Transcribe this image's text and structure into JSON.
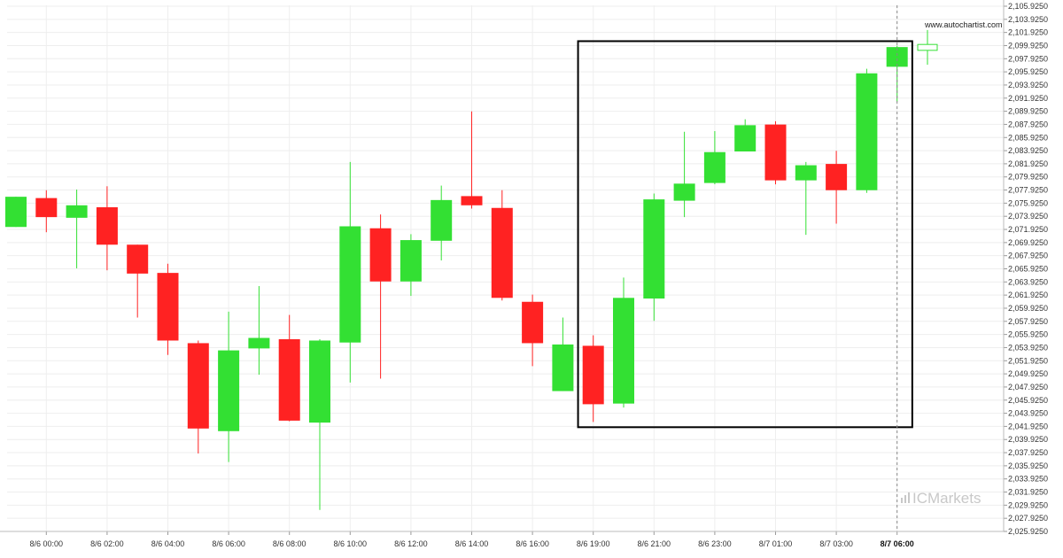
{
  "watermark": "www.autochartist.com",
  "brand": "ICMarkets",
  "colors": {
    "up": "#33e033",
    "down": "#ff2222",
    "grid": "#eeeeee",
    "box": "#000000",
    "cursor": "#888888"
  },
  "chart_data": {
    "type": "candlestick",
    "y_ticks": [
      "2,105.9250",
      "2,103.9250",
      "2,101.9250",
      "2,099.9250",
      "2,097.9250",
      "2,095.9250",
      "2,093.9250",
      "2,091.9250",
      "2,089.9250",
      "2,087.9250",
      "2,085.9250",
      "2,083.9250",
      "2,081.9250",
      "2,079.9250",
      "2,077.9250",
      "2,075.9250",
      "2,073.9250",
      "2,071.9250",
      "2,069.9250",
      "2,067.9250",
      "2,065.9250",
      "2,063.9250",
      "2,061.9250",
      "2,059.9250",
      "2,057.9250",
      "2,055.9250",
      "2,053.9250",
      "2,051.9250",
      "2,049.9250",
      "2,047.9250",
      "2,045.9250",
      "2,043.9250",
      "2,041.9250",
      "2,039.9250",
      "2,037.9250",
      "2,035.9250",
      "2,033.9250",
      "2,031.9250",
      "2,029.9250",
      "2,027.9250",
      "2,025.9250"
    ],
    "ylim": [
      2025.925,
      2105.925
    ],
    "x_ticks": [
      {
        "label": "8/6 00:00",
        "index": 1
      },
      {
        "label": "8/6 02:00",
        "index": 3
      },
      {
        "label": "8/6 04:00",
        "index": 5
      },
      {
        "label": "8/6 06:00",
        "index": 7
      },
      {
        "label": "8/6 08:00",
        "index": 9
      },
      {
        "label": "8/6 10:00",
        "index": 11
      },
      {
        "label": "8/6 12:00",
        "index": 13
      },
      {
        "label": "8/6 14:00",
        "index": 15
      },
      {
        "label": "8/6 16:00",
        "index": 17
      },
      {
        "label": "8/6 19:00",
        "index": 19
      },
      {
        "label": "8/6 21:00",
        "index": 21
      },
      {
        "label": "8/6 23:00",
        "index": 23
      },
      {
        "label": "8/7 01:00",
        "index": 25
      },
      {
        "label": "8/7 03:00",
        "index": 27
      },
      {
        "label": "8/7 06:00",
        "index": 29,
        "bold": true
      }
    ],
    "candles": [
      {
        "o": 2072.3,
        "h": 2076.9,
        "l": 2072.3,
        "c": 2076.9
      },
      {
        "o": 2076.7,
        "h": 2077.9,
        "l": 2071.5,
        "c": 2073.8
      },
      {
        "o": 2073.7,
        "h": 2078.0,
        "l": 2066.0,
        "c": 2075.6
      },
      {
        "o": 2075.3,
        "h": 2078.5,
        "l": 2065.7,
        "c": 2069.6
      },
      {
        "o": 2069.6,
        "h": 2069.6,
        "l": 2058.5,
        "c": 2065.2
      },
      {
        "o": 2065.3,
        "h": 2066.7,
        "l": 2052.8,
        "c": 2055.0
      },
      {
        "o": 2054.6,
        "h": 2055.0,
        "l": 2037.8,
        "c": 2041.6
      },
      {
        "o": 2041.2,
        "h": 2059.4,
        "l": 2036.5,
        "c": 2053.5
      },
      {
        "o": 2053.8,
        "h": 2063.3,
        "l": 2049.8,
        "c": 2055.4
      },
      {
        "o": 2055.2,
        "h": 2058.9,
        "l": 2042.7,
        "c": 2042.8
      },
      {
        "o": 2042.5,
        "h": 2055.2,
        "l": 2029.2,
        "c": 2055.0
      },
      {
        "o": 2054.7,
        "h": 2082.2,
        "l": 2048.6,
        "c": 2072.4
      },
      {
        "o": 2072.1,
        "h": 2074.2,
        "l": 2049.2,
        "c": 2064.0
      },
      {
        "o": 2064.0,
        "h": 2071.2,
        "l": 2061.8,
        "c": 2070.3
      },
      {
        "o": 2070.2,
        "h": 2078.6,
        "l": 2067.2,
        "c": 2076.4
      },
      {
        "o": 2077.0,
        "h": 2089.9,
        "l": 2075.1,
        "c": 2075.6
      },
      {
        "o": 2075.2,
        "h": 2077.9,
        "l": 2061.1,
        "c": 2061.5
      },
      {
        "o": 2060.9,
        "h": 2062.0,
        "l": 2051.1,
        "c": 2054.6
      },
      {
        "o": 2047.3,
        "h": 2058.5,
        "l": 2047.3,
        "c": 2054.4
      },
      {
        "o": 2054.2,
        "h": 2055.8,
        "l": 2042.6,
        "c": 2045.3
      },
      {
        "o": 2045.4,
        "h": 2064.6,
        "l": 2044.8,
        "c": 2061.5
      },
      {
        "o": 2061.4,
        "h": 2077.4,
        "l": 2058.0,
        "c": 2076.5
      },
      {
        "o": 2076.3,
        "h": 2086.8,
        "l": 2073.8,
        "c": 2078.9
      },
      {
        "o": 2079.0,
        "h": 2086.9,
        "l": 2078.8,
        "c": 2083.7
      },
      {
        "o": 2083.8,
        "h": 2088.7,
        "l": 2083.8,
        "c": 2087.8
      },
      {
        "o": 2087.9,
        "h": 2088.4,
        "l": 2078.8,
        "c": 2079.4
      },
      {
        "o": 2079.4,
        "h": 2082.2,
        "l": 2071.1,
        "c": 2081.7
      },
      {
        "o": 2081.9,
        "h": 2083.9,
        "l": 2072.8,
        "c": 2077.9
      },
      {
        "o": 2077.9,
        "h": 2096.4,
        "l": 2077.5,
        "c": 2095.7
      },
      {
        "o": 2096.7,
        "h": 2099.9,
        "l": 2091.4,
        "c": 2099.7
      },
      {
        "o": 2099.2,
        "h": 2102.3,
        "l": 2097.0,
        "c": 2100.1
      }
    ],
    "highlight_box": {
      "start_index": 18.5,
      "end_index": 29.5,
      "top": 2100.6,
      "bottom": 2041.8
    },
    "cursor_index": 29
  }
}
